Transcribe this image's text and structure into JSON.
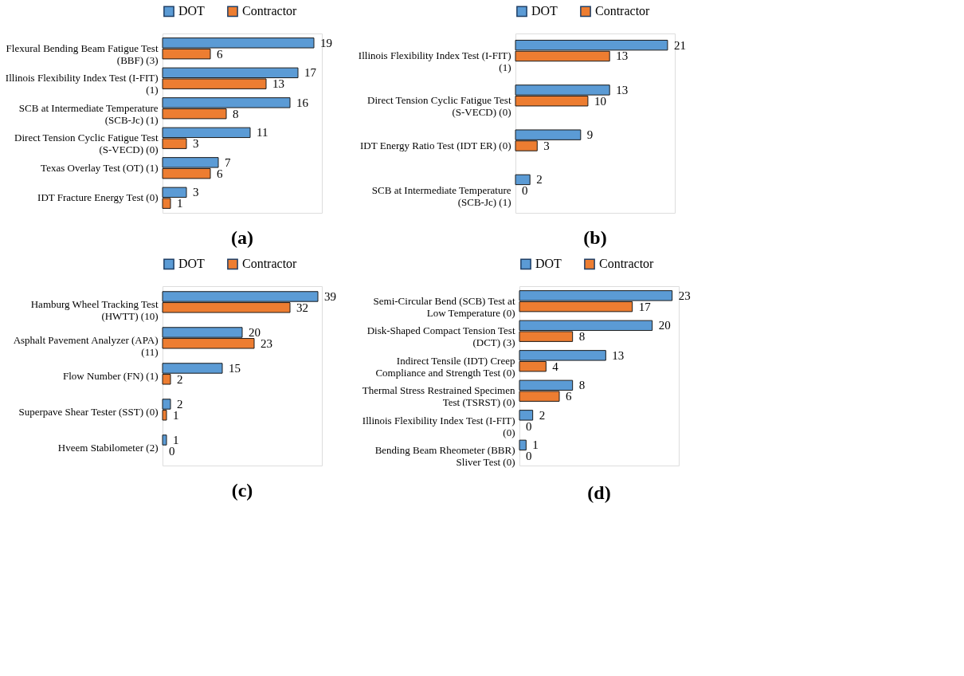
{
  "chart_data": [
    {
      "type": "bar",
      "orientation": "horizontal",
      "title": "(a)",
      "data_labels": true,
      "legend": "top",
      "tick_labels": "y",
      "categories": [
        "Flexural Bending Beam Fatigue Test\n(BBF) (3)",
        "Illinois Flexibility Index Test (I-FIT)\n(1)",
        "SCB at Intermediate Temperature\n(SCB-Jc) (1)",
        "Direct Tension Cyclic Fatigue Test\n(S-VECD) (0)",
        "Texas Overlay Test (OT) (1)",
        "IDT Fracture Energy Test (0)"
      ],
      "series": [
        {
          "name": "DOT",
          "color": "#5b9bd5",
          "values": [
            19,
            17,
            16,
            11,
            7,
            3
          ]
        },
        {
          "name": "Contractor",
          "color": "#ed7d31",
          "values": [
            6,
            13,
            8,
            3,
            6,
            1
          ]
        }
      ]
    },
    {
      "type": "bar",
      "orientation": "horizontal",
      "title": "(b)",
      "data_labels": true,
      "legend": "top",
      "tick_labels": "y",
      "categories": [
        "Illinois Flexibility Index Test (I-FIT)\n(1)",
        "Direct Tension Cyclic Fatigue Test\n(S-VECD) (0)",
        "IDT Energy Ratio Test (IDT ER) (0)",
        "SCB at Intermediate Temperature\n(SCB-Jc) (1)"
      ],
      "series": [
        {
          "name": "DOT",
          "color": "#5b9bd5",
          "values": [
            21,
            13,
            9,
            2
          ]
        },
        {
          "name": "Contractor",
          "color": "#ed7d31",
          "values": [
            13,
            10,
            3,
            0
          ]
        }
      ]
    },
    {
      "type": "bar",
      "orientation": "horizontal",
      "title": "(c)",
      "data_labels": true,
      "legend": "top",
      "tick_labels": "y",
      "categories": [
        "Hamburg Wheel Tracking Test\n(HWTT) (10)",
        "Asphalt Pavement Analyzer (APA)\n(11)",
        "Flow Number (FN) (1)",
        "Superpave Shear Tester (SST) (0)",
        "Hveem Stabilometer (2)"
      ],
      "series": [
        {
          "name": "DOT",
          "color": "#5b9bd5",
          "values": [
            39,
            20,
            15,
            2,
            1
          ]
        },
        {
          "name": "Contractor",
          "color": "#ed7d31",
          "values": [
            32,
            23,
            2,
            1,
            0
          ]
        }
      ]
    },
    {
      "type": "bar",
      "orientation": "horizontal",
      "title": "(d)",
      "data_labels": true,
      "legend": "top",
      "tick_labels": "y",
      "categories": [
        "Semi-Circular Bend (SCB) Test at\nLow Temperature (0)",
        "Disk-Shaped Compact Tension Test\n(DCT) (3)",
        "Indirect Tensile (IDT) Creep\nCompliance and Strength Test (0)",
        "Thermal Stress Restrained Specimen\nTest (TSRST) (0)",
        "Illinois Flexibility Index Test (I-FIT)\n(0)",
        "Bending Beam Rheometer (BBR)\nSliver Test (0)"
      ],
      "series": [
        {
          "name": "DOT",
          "color": "#5b9bd5",
          "values": [
            23,
            20,
            13,
            8,
            2,
            1
          ]
        },
        {
          "name": "Contractor",
          "color": "#ed7d31",
          "values": [
            17,
            8,
            4,
            6,
            0,
            0
          ]
        }
      ]
    }
  ]
}
